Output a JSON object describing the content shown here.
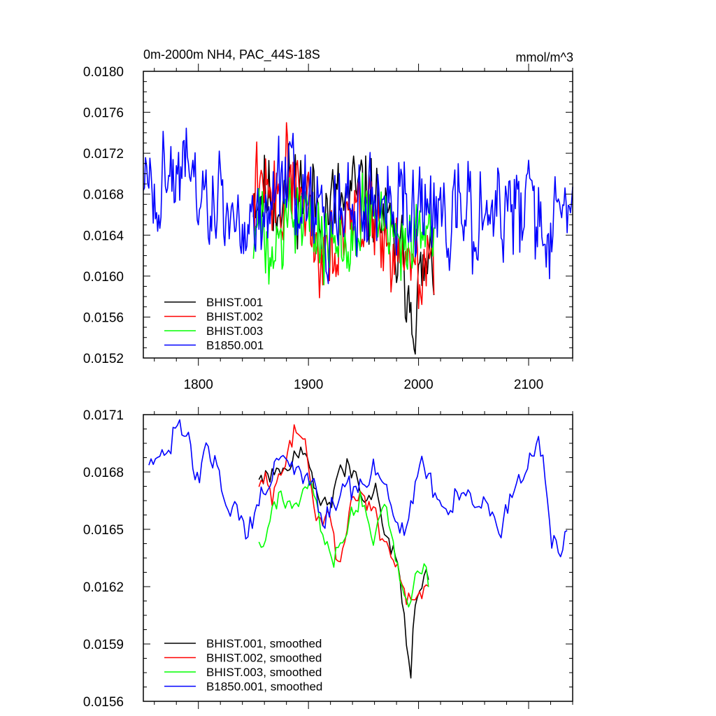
{
  "chart_data": [
    {
      "type": "line",
      "title": "0m-2000m NH4, PAC_44S-18S",
      "units": "mmol/m^3",
      "xlim": [
        1750,
        2140
      ],
      "ylim": [
        0.0152,
        0.018
      ],
      "xticks": [
        {
          "value": 1800,
          "label": "1800"
        },
        {
          "value": 1900,
          "label": "1900"
        },
        {
          "value": 2000,
          "label": "2000"
        },
        {
          "value": 2100,
          "label": "2100"
        }
      ],
      "yticks": [
        {
          "value": 0.0152,
          "label": "0.0152"
        },
        {
          "value": 0.0156,
          "label": "0.0156"
        },
        {
          "value": 0.016,
          "label": "0.0160"
        },
        {
          "value": 0.0164,
          "label": "0.0164"
        },
        {
          "value": 0.0168,
          "label": "0.0168"
        },
        {
          "value": 0.0172,
          "label": "0.0172"
        },
        {
          "value": 0.0176,
          "label": "0.0176"
        },
        {
          "value": 0.018,
          "label": "0.0180"
        }
      ],
      "legend_position": "bottom-left",
      "series": [
        {
          "name": "BHIST.001",
          "color": "#000000",
          "start": 1850,
          "end": 2014,
          "step": 1,
          "seed": 11,
          "noise": 0.00036,
          "knots": [
            [
              1850,
              0.01685
            ],
            [
              1870,
              0.01675
            ],
            [
              1890,
              0.0169
            ],
            [
              1910,
              0.01665
            ],
            [
              1930,
              0.0167
            ],
            [
              1950,
              0.0168
            ],
            [
              1965,
              0.01665
            ],
            [
              1980,
              0.0162
            ],
            [
              1990,
              0.016
            ],
            [
              1995,
              0.0157
            ],
            [
              2005,
              0.016
            ],
            [
              2014,
              0.0161
            ]
          ]
        },
        {
          "name": "BHIST.002",
          "color": "#ff0000",
          "start": 1850,
          "end": 2014,
          "step": 1,
          "seed": 22,
          "noise": 0.00036,
          "knots": [
            [
              1850,
              0.01685
            ],
            [
              1870,
              0.01675
            ],
            [
              1890,
              0.01705
            ],
            [
              1905,
              0.0164
            ],
            [
              1920,
              0.01635
            ],
            [
              1935,
              0.0166
            ],
            [
              1950,
              0.0166
            ],
            [
              1970,
              0.0164
            ],
            [
              1985,
              0.01615
            ],
            [
              2000,
              0.016
            ],
            [
              2014,
              0.0161
            ]
          ]
        },
        {
          "name": "BHIST.003",
          "color": "#00ff00",
          "start": 1850,
          "end": 2014,
          "step": 1,
          "seed": 33,
          "noise": 0.00034,
          "knots": [
            [
              1850,
              0.0164
            ],
            [
              1870,
              0.0165
            ],
            [
              1890,
              0.0166
            ],
            [
              1905,
              0.0166
            ],
            [
              1915,
              0.0162
            ],
            [
              1930,
              0.0164
            ],
            [
              1950,
              0.0166
            ],
            [
              1970,
              0.0165
            ],
            [
              1985,
              0.01615
            ],
            [
              2000,
              0.0162
            ],
            [
              2008,
              0.0165
            ],
            [
              2014,
              0.01625
            ]
          ]
        },
        {
          "name": "B1850.001",
          "color": "#0000ff",
          "start": 1750,
          "end": 2140,
          "step": 1,
          "seed": 44,
          "noise": 0.00038,
          "knots": [
            [
              1750,
              0.01685
            ],
            [
              1775,
              0.01695
            ],
            [
              1800,
              0.01685
            ],
            [
              1820,
              0.0166
            ],
            [
              1840,
              0.0165
            ],
            [
              1860,
              0.0167
            ],
            [
              1880,
              0.0168
            ],
            [
              1900,
              0.0167
            ],
            [
              1920,
              0.0165
            ],
            [
              1940,
              0.01665
            ],
            [
              1960,
              0.01665
            ],
            [
              1980,
              0.0166
            ],
            [
              2000,
              0.01665
            ],
            [
              2020,
              0.0166
            ],
            [
              2040,
              0.0166
            ],
            [
              2060,
              0.01655
            ],
            [
              2080,
              0.0166
            ],
            [
              2100,
              0.01675
            ],
            [
              2120,
              0.0165
            ],
            [
              2140,
              0.01655
            ]
          ]
        }
      ]
    },
    {
      "type": "line",
      "xlim": [
        1750,
        2140
      ],
      "ylim": [
        0.0156,
        0.0171
      ],
      "xticks": [
        {
          "value": 1800,
          "label": ""
        },
        {
          "value": 1900,
          "label": ""
        },
        {
          "value": 2000,
          "label": ""
        },
        {
          "value": 2100,
          "label": ""
        }
      ],
      "yticks": [
        {
          "value": 0.0156,
          "label": "0.0156"
        },
        {
          "value": 0.0159,
          "label": "0.0159"
        },
        {
          "value": 0.0162,
          "label": "0.0162"
        },
        {
          "value": 0.0165,
          "label": "0.0165"
        },
        {
          "value": 0.0168,
          "label": "0.0168"
        },
        {
          "value": 0.0171,
          "label": "0.0171"
        }
      ],
      "legend_position": "bottom-left",
      "series": [
        {
          "name": "BHIST.001, smoothed",
          "color": "#000000",
          "start": 1855,
          "end": 2009,
          "step": 2,
          "seed": 55,
          "noise": 5e-05,
          "knots": [
            [
              1855,
              0.01679
            ],
            [
              1860,
              0.0168
            ],
            [
              1868,
              0.01683
            ],
            [
              1875,
              0.01677
            ],
            [
              1885,
              0.01686
            ],
            [
              1893,
              0.01688
            ],
            [
              1900,
              0.01687
            ],
            [
              1905,
              0.01675
            ],
            [
              1910,
              0.01667
            ],
            [
              1920,
              0.01667
            ],
            [
              1928,
              0.01682
            ],
            [
              1935,
              0.01685
            ],
            [
              1942,
              0.01678
            ],
            [
              1950,
              0.01665
            ],
            [
              1958,
              0.01672
            ],
            [
              1965,
              0.01662
            ],
            [
              1972,
              0.01642
            ],
            [
              1980,
              0.0163
            ],
            [
              1987,
              0.01605
            ],
            [
              1990,
              0.0159
            ],
            [
              1993,
              0.01576
            ],
            [
              1996,
              0.016
            ],
            [
              2000,
              0.01618
            ],
            [
              2005,
              0.01622
            ],
            [
              2009,
              0.01625
            ]
          ]
        },
        {
          "name": "BHIST.002, smoothed",
          "color": "#ff0000",
          "start": 1855,
          "end": 2009,
          "step": 2,
          "seed": 66,
          "noise": 5e-05,
          "knots": [
            [
              1855,
              0.01678
            ],
            [
              1862,
              0.01678
            ],
            [
              1868,
              0.01668
            ],
            [
              1875,
              0.01678
            ],
            [
              1880,
              0.0169
            ],
            [
              1888,
              0.017
            ],
            [
              1893,
              0.01702
            ],
            [
              1898,
              0.0169
            ],
            [
              1905,
              0.0166
            ],
            [
              1910,
              0.0165
            ],
            [
              1918,
              0.01665
            ],
            [
              1922,
              0.01645
            ],
            [
              1928,
              0.01632
            ],
            [
              1935,
              0.01648
            ],
            [
              1940,
              0.01665
            ],
            [
              1948,
              0.01668
            ],
            [
              1955,
              0.01665
            ],
            [
              1962,
              0.01658
            ],
            [
              1970,
              0.01645
            ],
            [
              1978,
              0.0163
            ],
            [
              1985,
              0.01625
            ],
            [
              1992,
              0.01612
            ],
            [
              2000,
              0.01615
            ],
            [
              2005,
              0.0162
            ],
            [
              2009,
              0.01621
            ]
          ]
        },
        {
          "name": "BHIST.003, smoothed",
          "color": "#00ff00",
          "start": 1855,
          "end": 2009,
          "step": 2,
          "seed": 77,
          "noise": 5e-05,
          "knots": [
            [
              1855,
              0.01646
            ],
            [
              1858,
              0.0164
            ],
            [
              1865,
              0.01655
            ],
            [
              1872,
              0.01668
            ],
            [
              1880,
              0.01662
            ],
            [
              1888,
              0.0166
            ],
            [
              1895,
              0.01668
            ],
            [
              1902,
              0.01672
            ],
            [
              1908,
              0.01662
            ],
            [
              1915,
              0.0164
            ],
            [
              1922,
              0.01633
            ],
            [
              1930,
              0.0164
            ],
            [
              1938,
              0.01655
            ],
            [
              1945,
              0.01663
            ],
            [
              1950,
              0.01665
            ],
            [
              1955,
              0.01648
            ],
            [
              1960,
              0.01643
            ],
            [
              1965,
              0.0166
            ],
            [
              1970,
              0.01665
            ],
            [
              1975,
              0.01648
            ],
            [
              1980,
              0.0163
            ],
            [
              1985,
              0.01625
            ],
            [
              1992,
              0.01608
            ],
            [
              1998,
              0.0162
            ],
            [
              2002,
              0.0163
            ],
            [
              2006,
              0.01628
            ],
            [
              2009,
              0.01623
            ]
          ]
        },
        {
          "name": "B1850.001, smoothed",
          "color": "#0000ff",
          "start": 1755,
          "end": 2135,
          "step": 2,
          "seed": 88,
          "noise": 6e-05,
          "knots": [
            [
              1755,
              0.0169
            ],
            [
              1765,
              0.0169
            ],
            [
              1775,
              0.01695
            ],
            [
              1782,
              0.01705
            ],
            [
              1790,
              0.017
            ],
            [
              1800,
              0.01682
            ],
            [
              1810,
              0.0169
            ],
            [
              1818,
              0.0168
            ],
            [
              1828,
              0.01655
            ],
            [
              1838,
              0.0166
            ],
            [
              1845,
              0.01648
            ],
            [
              1855,
              0.0166
            ],
            [
              1862,
              0.01672
            ],
            [
              1870,
              0.0169
            ],
            [
              1880,
              0.0168
            ],
            [
              1890,
              0.01685
            ],
            [
              1898,
              0.01675
            ],
            [
              1905,
              0.01665
            ],
            [
              1915,
              0.01648
            ],
            [
              1922,
              0.01662
            ],
            [
              1930,
              0.01672
            ],
            [
              1940,
              0.01665
            ],
            [
              1950,
              0.01668
            ],
            [
              1960,
              0.01682
            ],
            [
              1968,
              0.0168
            ],
            [
              1975,
              0.01662
            ],
            [
              1985,
              0.01648
            ],
            [
              1995,
              0.01665
            ],
            [
              2000,
              0.01682
            ],
            [
              2008,
              0.0168
            ],
            [
              2015,
              0.01665
            ],
            [
              2025,
              0.0166
            ],
            [
              2035,
              0.01668
            ],
            [
              2045,
              0.01665
            ],
            [
              2055,
              0.0166
            ],
            [
              2065,
              0.0166
            ],
            [
              2075,
              0.01648
            ],
            [
              2085,
              0.0167
            ],
            [
              2095,
              0.01675
            ],
            [
              2102,
              0.01685
            ],
            [
              2108,
              0.017
            ],
            [
              2115,
              0.0168
            ],
            [
              2120,
              0.01648
            ],
            [
              2128,
              0.0164
            ],
            [
              2135,
              0.0165
            ]
          ]
        }
      ]
    }
  ]
}
